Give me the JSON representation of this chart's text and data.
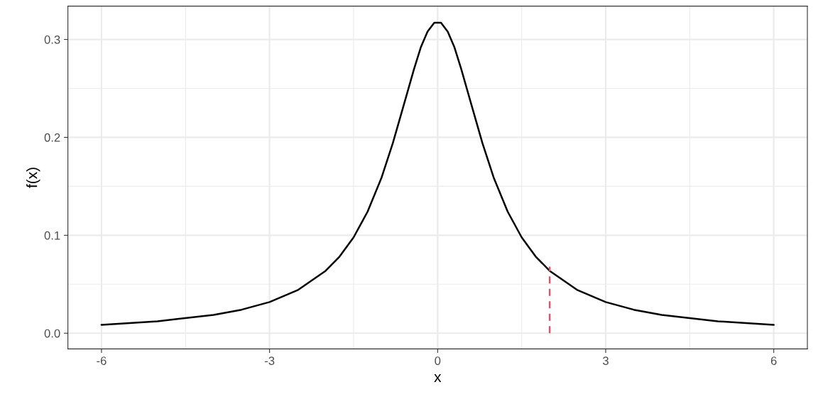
{
  "chart_data": {
    "type": "line",
    "xlabel": "x",
    "ylabel": "f(x)",
    "series": [
      {
        "color": "#000000",
        "x": [
          -6,
          -5,
          -4,
          -3.5,
          -3,
          -2.5,
          -2,
          -1.75,
          -1.5,
          -1.25,
          -1,
          -0.8,
          -0.6,
          -0.42,
          -0.3,
          -0.18,
          -0.06,
          0.06,
          0.18,
          0.3,
          0.42,
          0.6,
          0.8,
          1,
          1.25,
          1.5,
          1.75,
          2,
          2.5,
          3,
          3.5,
          4,
          5,
          6
        ],
        "values": [
          0.0086,
          0.0122,
          0.0187,
          0.024,
          0.0318,
          0.0439,
          0.0637,
          0.0783,
          0.0979,
          0.1242,
          0.159,
          0.194,
          0.234,
          0.27,
          0.292,
          0.308,
          0.317,
          0.317,
          0.308,
          0.292,
          0.27,
          0.234,
          0.194,
          0.159,
          0.1242,
          0.0979,
          0.0783,
          0.0637,
          0.0439,
          0.0318,
          0.024,
          0.0187,
          0.0122,
          0.0086
        ]
      },
      {
        "color": "#df536b",
        "x": [
          2,
          2
        ],
        "values": [
          0,
          0.068
        ],
        "line_style": "dashed"
      }
    ],
    "xlim": [
      -6.6,
      6.6
    ],
    "xticks": [
      -6,
      -3,
      0,
      3,
      6
    ],
    "ylim": [
      -0.016,
      0.334
    ],
    "yticks": [
      {
        "value": 0,
        "label": "0.0"
      },
      0.1,
      0.2,
      0.3
    ],
    "grid": true,
    "legend": false
  }
}
